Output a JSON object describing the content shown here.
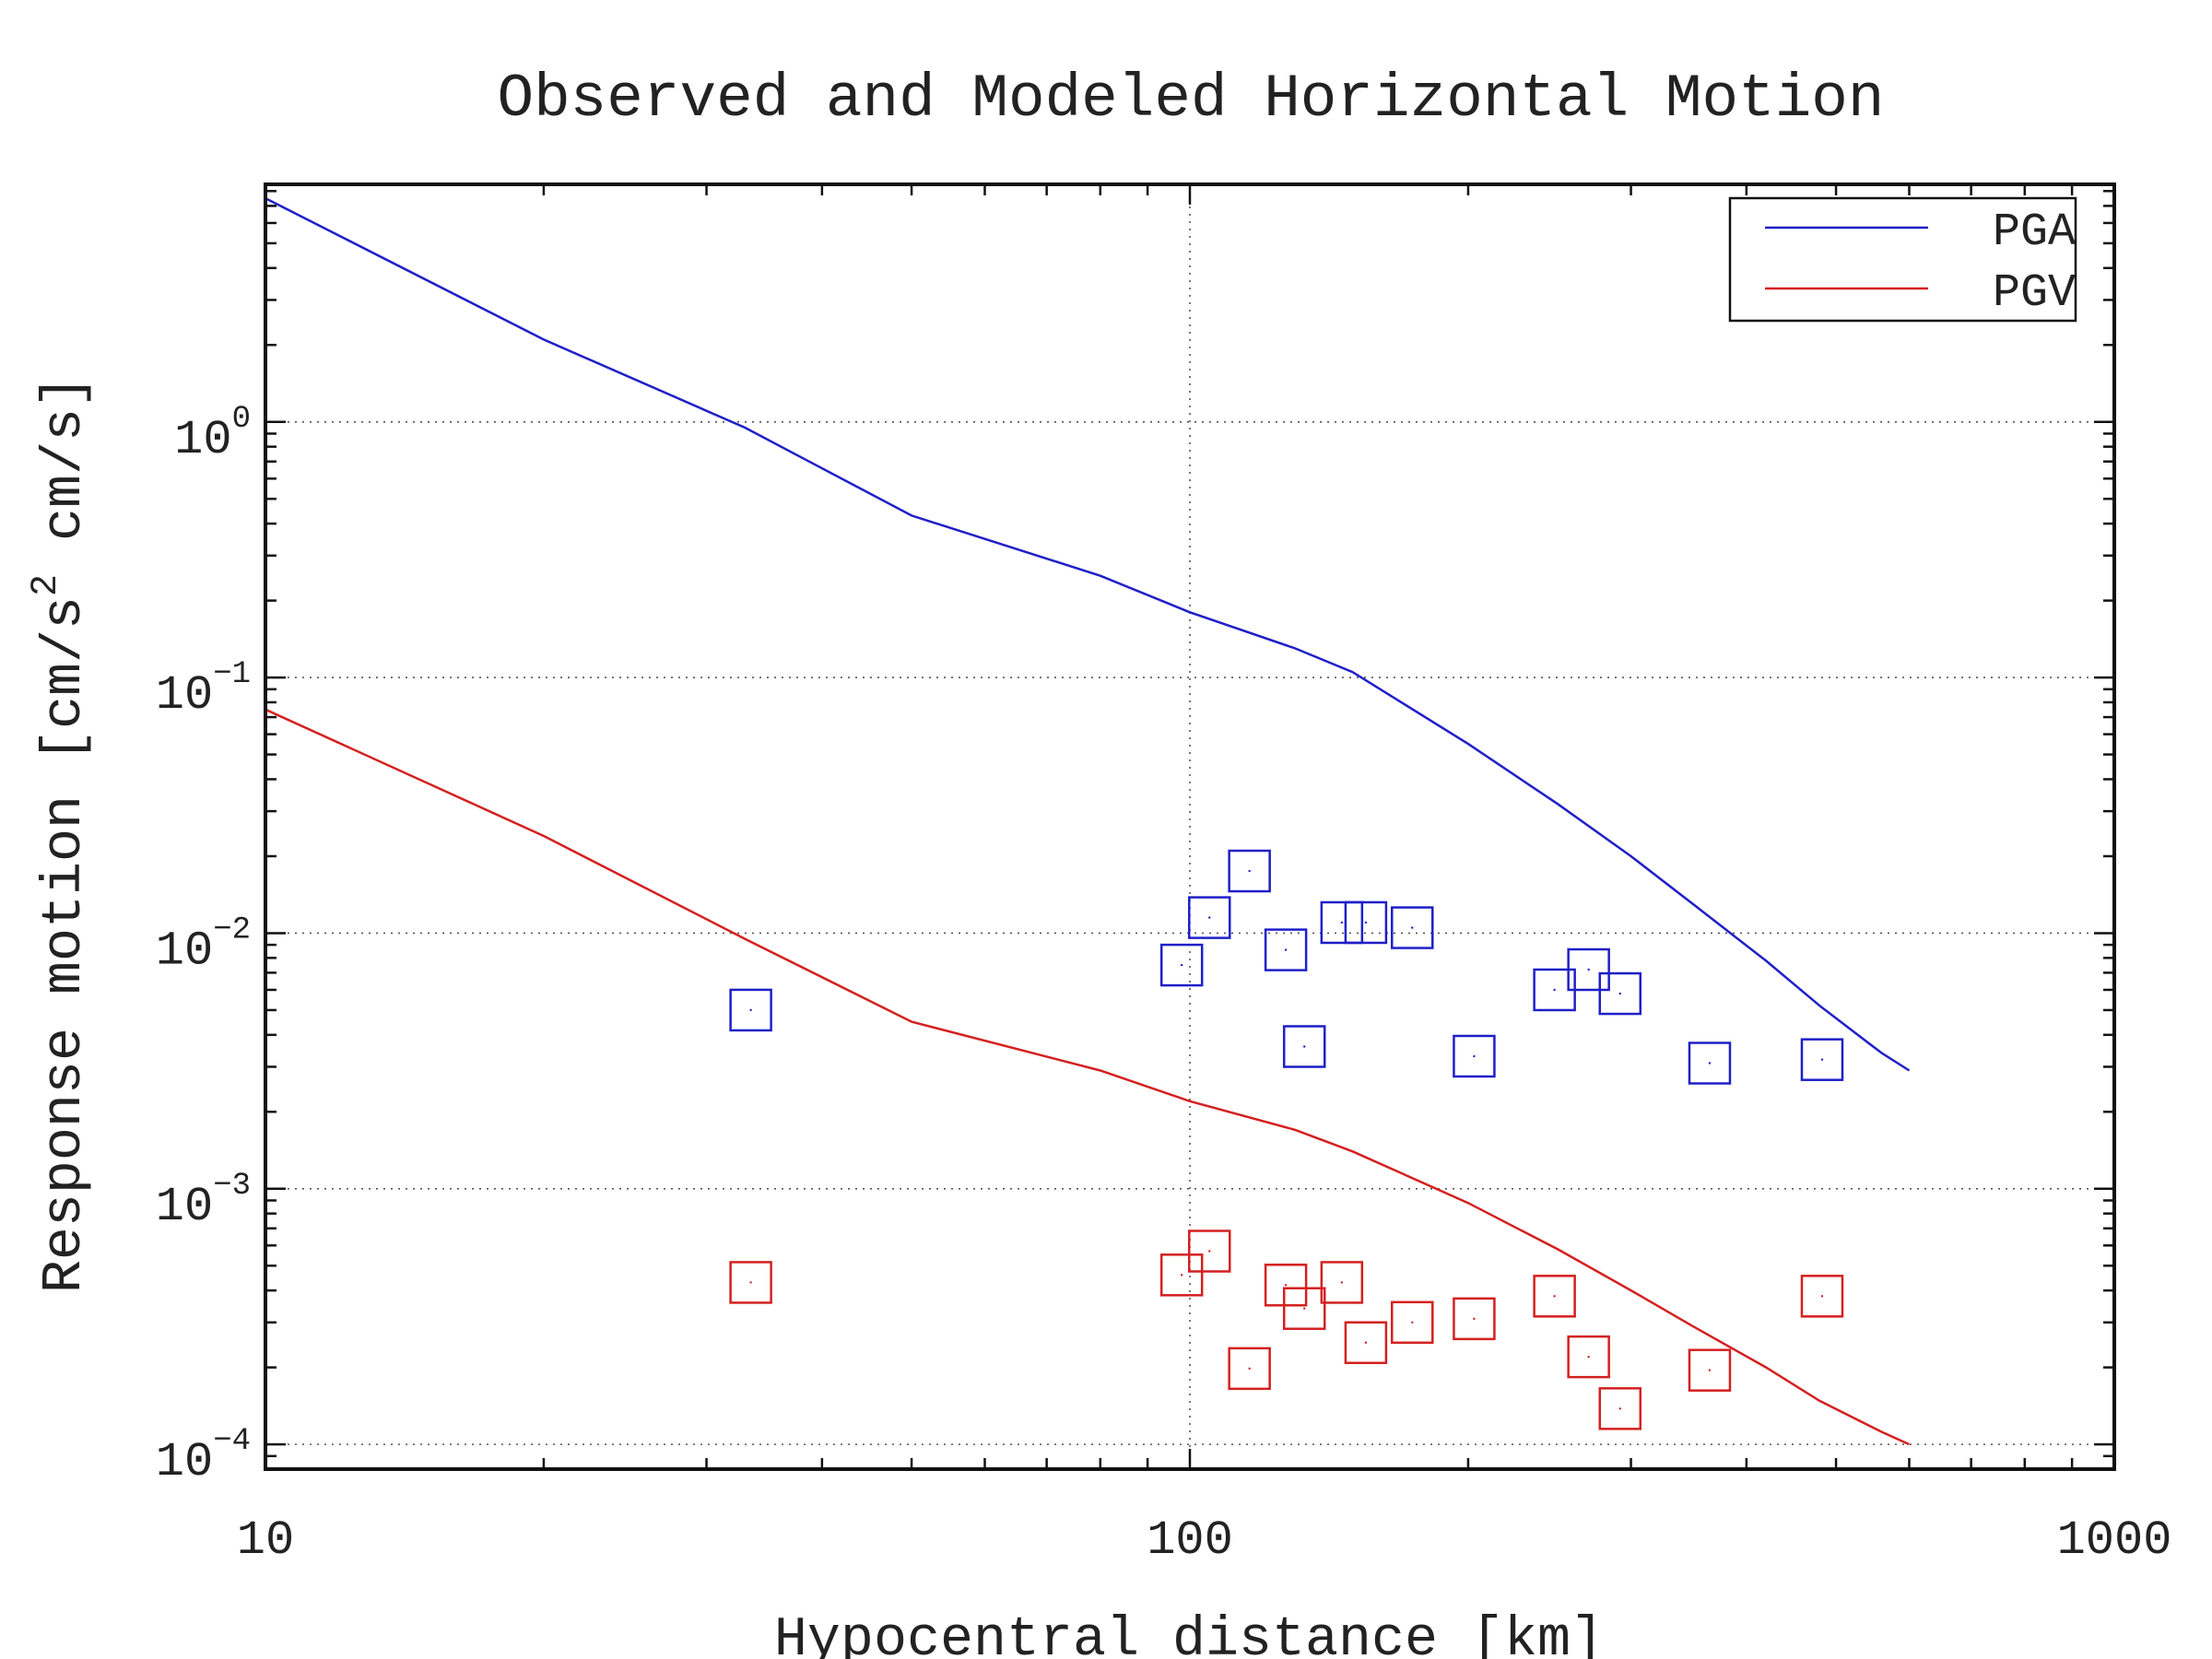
{
  "chart_data": {
    "type": "scatter",
    "title": "Observed and Modeled Horizontal Motion",
    "xlabel": "Hypocentral distance [km]",
    "ylabel": {
      "main": "Response motion  [cm/s",
      "sup": "2",
      "tail": "  cm/s]"
    },
    "x_scale": "log",
    "y_scale": "log",
    "xlim": [
      10,
      1000
    ],
    "ylim": [
      8e-05,
      8.5
    ],
    "x_ticks": [
      {
        "value": 10,
        "label": "10"
      },
      {
        "value": 100,
        "label": "100"
      },
      {
        "value": 1000,
        "label": "1000"
      }
    ],
    "y_ticks": [
      {
        "value": 1,
        "base": "10",
        "exp": "0"
      },
      {
        "value": 0.1,
        "base": "10",
        "exp": "−1"
      },
      {
        "value": 0.01,
        "base": "10",
        "exp": "−2"
      },
      {
        "value": 0.001,
        "base": "10",
        "exp": "−3"
      },
      {
        "value": 0.0001,
        "base": "10",
        "exp": "−4"
      }
    ],
    "grid": true,
    "legend_position": "top-right",
    "legend": [
      {
        "label": "PGA",
        "color": "#1f1fc8"
      },
      {
        "label": "PGV",
        "color": "#d42020"
      }
    ],
    "model_curves": [
      {
        "legend": "PGA",
        "color": "#1f1fc8",
        "points": [
          [
            10,
            7.5
          ],
          [
            20,
            2.1
          ],
          [
            33,
            0.95
          ],
          [
            50,
            0.43
          ],
          [
            80,
            0.25
          ],
          [
            100,
            0.18
          ],
          [
            130,
            0.13
          ],
          [
            150,
            0.105
          ],
          [
            200,
            0.055
          ],
          [
            250,
            0.032
          ],
          [
            300,
            0.02
          ],
          [
            350,
            0.013
          ],
          [
            420,
            0.0078
          ],
          [
            480,
            0.0052
          ],
          [
            560,
            0.0034
          ],
          [
            600,
            0.0029
          ]
        ]
      },
      {
        "legend": "PGV",
        "color": "#d42020",
        "points": [
          [
            10,
            0.075
          ],
          [
            20,
            0.024
          ],
          [
            33,
            0.0095
          ],
          [
            50,
            0.0045
          ],
          [
            80,
            0.0029
          ],
          [
            100,
            0.0022
          ],
          [
            130,
            0.0017
          ],
          [
            150,
            0.0014
          ],
          [
            200,
            0.00088
          ],
          [
            250,
            0.00058
          ],
          [
            300,
            0.0004
          ],
          [
            350,
            0.00029
          ],
          [
            420,
            0.0002
          ],
          [
            480,
            0.000148
          ],
          [
            560,
            0.000112
          ],
          [
            600,
            0.0001
          ]
        ]
      }
    ],
    "observed": [
      {
        "legend": "PGA",
        "color": "#1f1fc8",
        "points": [
          [
            33.5,
            0.005
          ],
          [
            98,
            0.0075
          ],
          [
            105,
            0.0115
          ],
          [
            116,
            0.0175
          ],
          [
            127,
            0.0086
          ],
          [
            133,
            0.0036
          ],
          [
            146,
            0.011
          ],
          [
            155,
            0.011
          ],
          [
            174,
            0.0105
          ],
          [
            203,
            0.0033
          ],
          [
            248,
            0.006
          ],
          [
            270,
            0.0072
          ],
          [
            292,
            0.0058
          ],
          [
            365,
            0.0031
          ],
          [
            483,
            0.0032
          ]
        ]
      },
      {
        "legend": "PGV",
        "color": "#d42020",
        "points": [
          [
            33.5,
            0.00043
          ],
          [
            98,
            0.00046
          ],
          [
            105,
            0.00057
          ],
          [
            116,
            0.000198
          ],
          [
            127,
            0.00042
          ],
          [
            133,
            0.00034
          ],
          [
            146,
            0.00043
          ],
          [
            155,
            0.00025
          ],
          [
            174,
            0.0003
          ],
          [
            203,
            0.00031
          ],
          [
            248,
            0.00038
          ],
          [
            270,
            0.00022
          ],
          [
            292,
            0.000138
          ],
          [
            365,
            0.000195
          ],
          [
            483,
            0.00038
          ]
        ]
      }
    ]
  }
}
